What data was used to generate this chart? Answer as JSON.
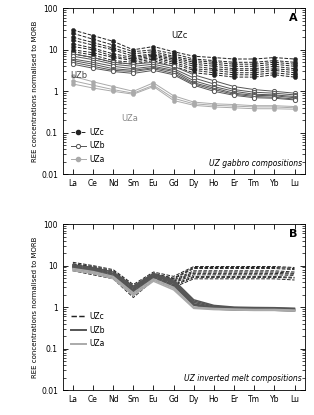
{
  "elements": [
    "La",
    "Ce",
    "Nd",
    "Sm",
    "Eu",
    "Gd",
    "Dy",
    "Ho",
    "Er",
    "Tm",
    "Yb",
    "Lu"
  ],
  "panel_A_label": "A",
  "panel_B_label": "B",
  "ylabel": "REE concentrations normalised to MORB",
  "subtitle_A": "UZ gabbro compositions",
  "subtitle_B": "UZ inverted melt compositions",
  "ylim": [
    0.01,
    100
  ],
  "yticks": [
    0.01,
    0.1,
    1,
    10,
    100
  ],
  "UZc_gabbro": [
    [
      30,
      22,
      16,
      10,
      12,
      9,
      7,
      6.5,
      6,
      6,
      6.5,
      6
    ],
    [
      25,
      18,
      13,
      9,
      10,
      8,
      6,
      5.5,
      5,
      5,
      5.5,
      5
    ],
    [
      20,
      15,
      11,
      8,
      9,
      7,
      5.5,
      5,
      4.5,
      4.5,
      5,
      4.5
    ],
    [
      17,
      13,
      10,
      7,
      8,
      6.5,
      5,
      4.5,
      4,
      4,
      4.5,
      4
    ],
    [
      14,
      11,
      8,
      6.5,
      7.5,
      6,
      4.5,
      4,
      3.5,
      3.5,
      4,
      3.5
    ],
    [
      12,
      10,
      7,
      6,
      7,
      5.5,
      4,
      3.5,
      3.2,
      3.2,
      3.5,
      3.2
    ],
    [
      10,
      8.5,
      6.5,
      5.5,
      6.5,
      5,
      3.5,
      3.2,
      2.8,
      2.8,
      3.2,
      2.8
    ],
    [
      9,
      7.5,
      5.5,
      5,
      6,
      4.5,
      3.2,
      2.8,
      2.5,
      2.5,
      2.8,
      2.5
    ],
    [
      8,
      6.5,
      5,
      4.5,
      5.5,
      4,
      2.8,
      2.5,
      2.2,
      2.2,
      2.5,
      2.2
    ]
  ],
  "UZb_gabbro": [
    [
      8,
      6.5,
      5.0,
      4.5,
      5.0,
      4.0,
      2.5,
      1.8,
      1.3,
      1.1,
      1.0,
      0.9
    ],
    [
      7,
      5.8,
      4.5,
      4.0,
      4.5,
      3.5,
      2.1,
      1.5,
      1.1,
      0.95,
      0.9,
      0.82
    ],
    [
      6,
      5.0,
      4.0,
      3.5,
      4.0,
      3.2,
      1.8,
      1.3,
      1.0,
      0.85,
      0.82,
      0.75
    ],
    [
      5.5,
      4.5,
      3.5,
      3.2,
      3.7,
      3.0,
      1.6,
      1.2,
      0.9,
      0.8,
      0.78,
      0.7
    ],
    [
      5.0,
      4.0,
      3.2,
      3.0,
      3.5,
      2.7,
      1.5,
      1.1,
      0.85,
      0.75,
      0.72,
      0.65
    ],
    [
      4.5,
      3.6,
      3.0,
      2.7,
      3.2,
      2.5,
      1.4,
      1.0,
      0.8,
      0.7,
      0.68,
      0.62
    ]
  ],
  "UZa_gabbro": [
    [
      2.3,
      1.7,
      1.3,
      1.0,
      1.6,
      0.78,
      0.55,
      0.5,
      0.48,
      0.45,
      0.45,
      0.43
    ],
    [
      1.8,
      1.4,
      1.1,
      0.9,
      1.4,
      0.68,
      0.5,
      0.46,
      0.44,
      0.42,
      0.42,
      0.4
    ],
    [
      1.5,
      1.2,
      1.0,
      0.85,
      1.3,
      0.6,
      0.46,
      0.42,
      0.4,
      0.38,
      0.38,
      0.37
    ]
  ],
  "UZc_melt": [
    [
      12,
      10,
      8,
      3.5,
      7.0,
      5.5,
      9.5,
      9.5,
      9.5,
      9.5,
      9.5,
      9.0
    ],
    [
      11,
      9.5,
      7.5,
      3.2,
      6.5,
      5.0,
      9.0,
      9.0,
      9.0,
      9.0,
      9.0,
      8.5
    ],
    [
      10,
      9.0,
      7.0,
      3.0,
      6.2,
      4.8,
      8.5,
      8.5,
      8.5,
      8.5,
      8.5,
      8.0
    ],
    [
      11,
      9.0,
      7.0,
      2.8,
      6.0,
      4.5,
      7.5,
      7.5,
      7.5,
      7.5,
      7.5,
      7.0
    ],
    [
      10,
      8.5,
      6.5,
      2.6,
      5.8,
      4.2,
      7.0,
      7.0,
      7.0,
      7.0,
      7.0,
      6.5
    ],
    [
      9.5,
      8.0,
      6.2,
      2.4,
      5.5,
      4.0,
      6.5,
      6.5,
      6.5,
      6.5,
      6.5,
      6.2
    ],
    [
      9.0,
      7.5,
      5.8,
      2.2,
      5.2,
      3.8,
      6.0,
      6.0,
      6.0,
      6.0,
      6.0,
      5.8
    ],
    [
      8.5,
      7.0,
      5.5,
      2.0,
      5.0,
      3.5,
      5.5,
      5.5,
      5.5,
      5.5,
      5.5,
      5.2
    ],
    [
      8.0,
      6.5,
      5.2,
      1.9,
      4.8,
      3.3,
      5.2,
      5.2,
      5.2,
      5.2,
      5.2,
      5.0
    ],
    [
      7.5,
      6.0,
      4.8,
      1.7,
      4.5,
      3.0,
      4.8,
      4.8,
      4.8,
      4.8,
      4.8,
      4.5
    ]
  ],
  "UZb_melt": [
    [
      10.5,
      9.0,
      7.0,
      3.2,
      6.5,
      4.5,
      1.5,
      1.1,
      1.0,
      0.98,
      0.97,
      0.94
    ],
    [
      10.0,
      8.5,
      6.5,
      3.0,
      6.2,
      4.2,
      1.4,
      1.05,
      0.97,
      0.95,
      0.94,
      0.91
    ],
    [
      9.5,
      8.0,
      6.2,
      2.8,
      6.0,
      4.0,
      1.3,
      1.0,
      0.94,
      0.92,
      0.92,
      0.88
    ],
    [
      9.2,
      7.5,
      5.8,
      2.6,
      5.8,
      3.8,
      1.2,
      0.97,
      0.91,
      0.89,
      0.89,
      0.86
    ],
    [
      9.0,
      7.2,
      5.5,
      2.4,
      5.5,
      3.5,
      1.15,
      0.94,
      0.88,
      0.87,
      0.87,
      0.83
    ],
    [
      8.5,
      6.8,
      5.2,
      2.2,
      5.2,
      3.2,
      1.1,
      0.9,
      0.85,
      0.84,
      0.84,
      0.8
    ]
  ],
  "UZa_melt": [
    [
      8.5,
      7.2,
      5.5,
      2.2,
      4.8,
      3.0,
      1.0,
      0.93,
      0.9,
      0.88,
      0.88,
      0.85
    ],
    [
      8.0,
      6.8,
      5.2,
      2.0,
      4.5,
      2.8,
      0.97,
      0.9,
      0.87,
      0.86,
      0.86,
      0.82
    ],
    [
      7.5,
      6.5,
      4.8,
      1.9,
      4.2,
      2.6,
      0.93,
      0.87,
      0.85,
      0.83,
      0.83,
      0.8
    ]
  ],
  "color_UZc": "#222222",
  "color_UZb": "#555555",
  "color_UZa": "#aaaaaa",
  "lw": 0.7,
  "marker_size": 3.0,
  "bg_color": "#ffffff"
}
